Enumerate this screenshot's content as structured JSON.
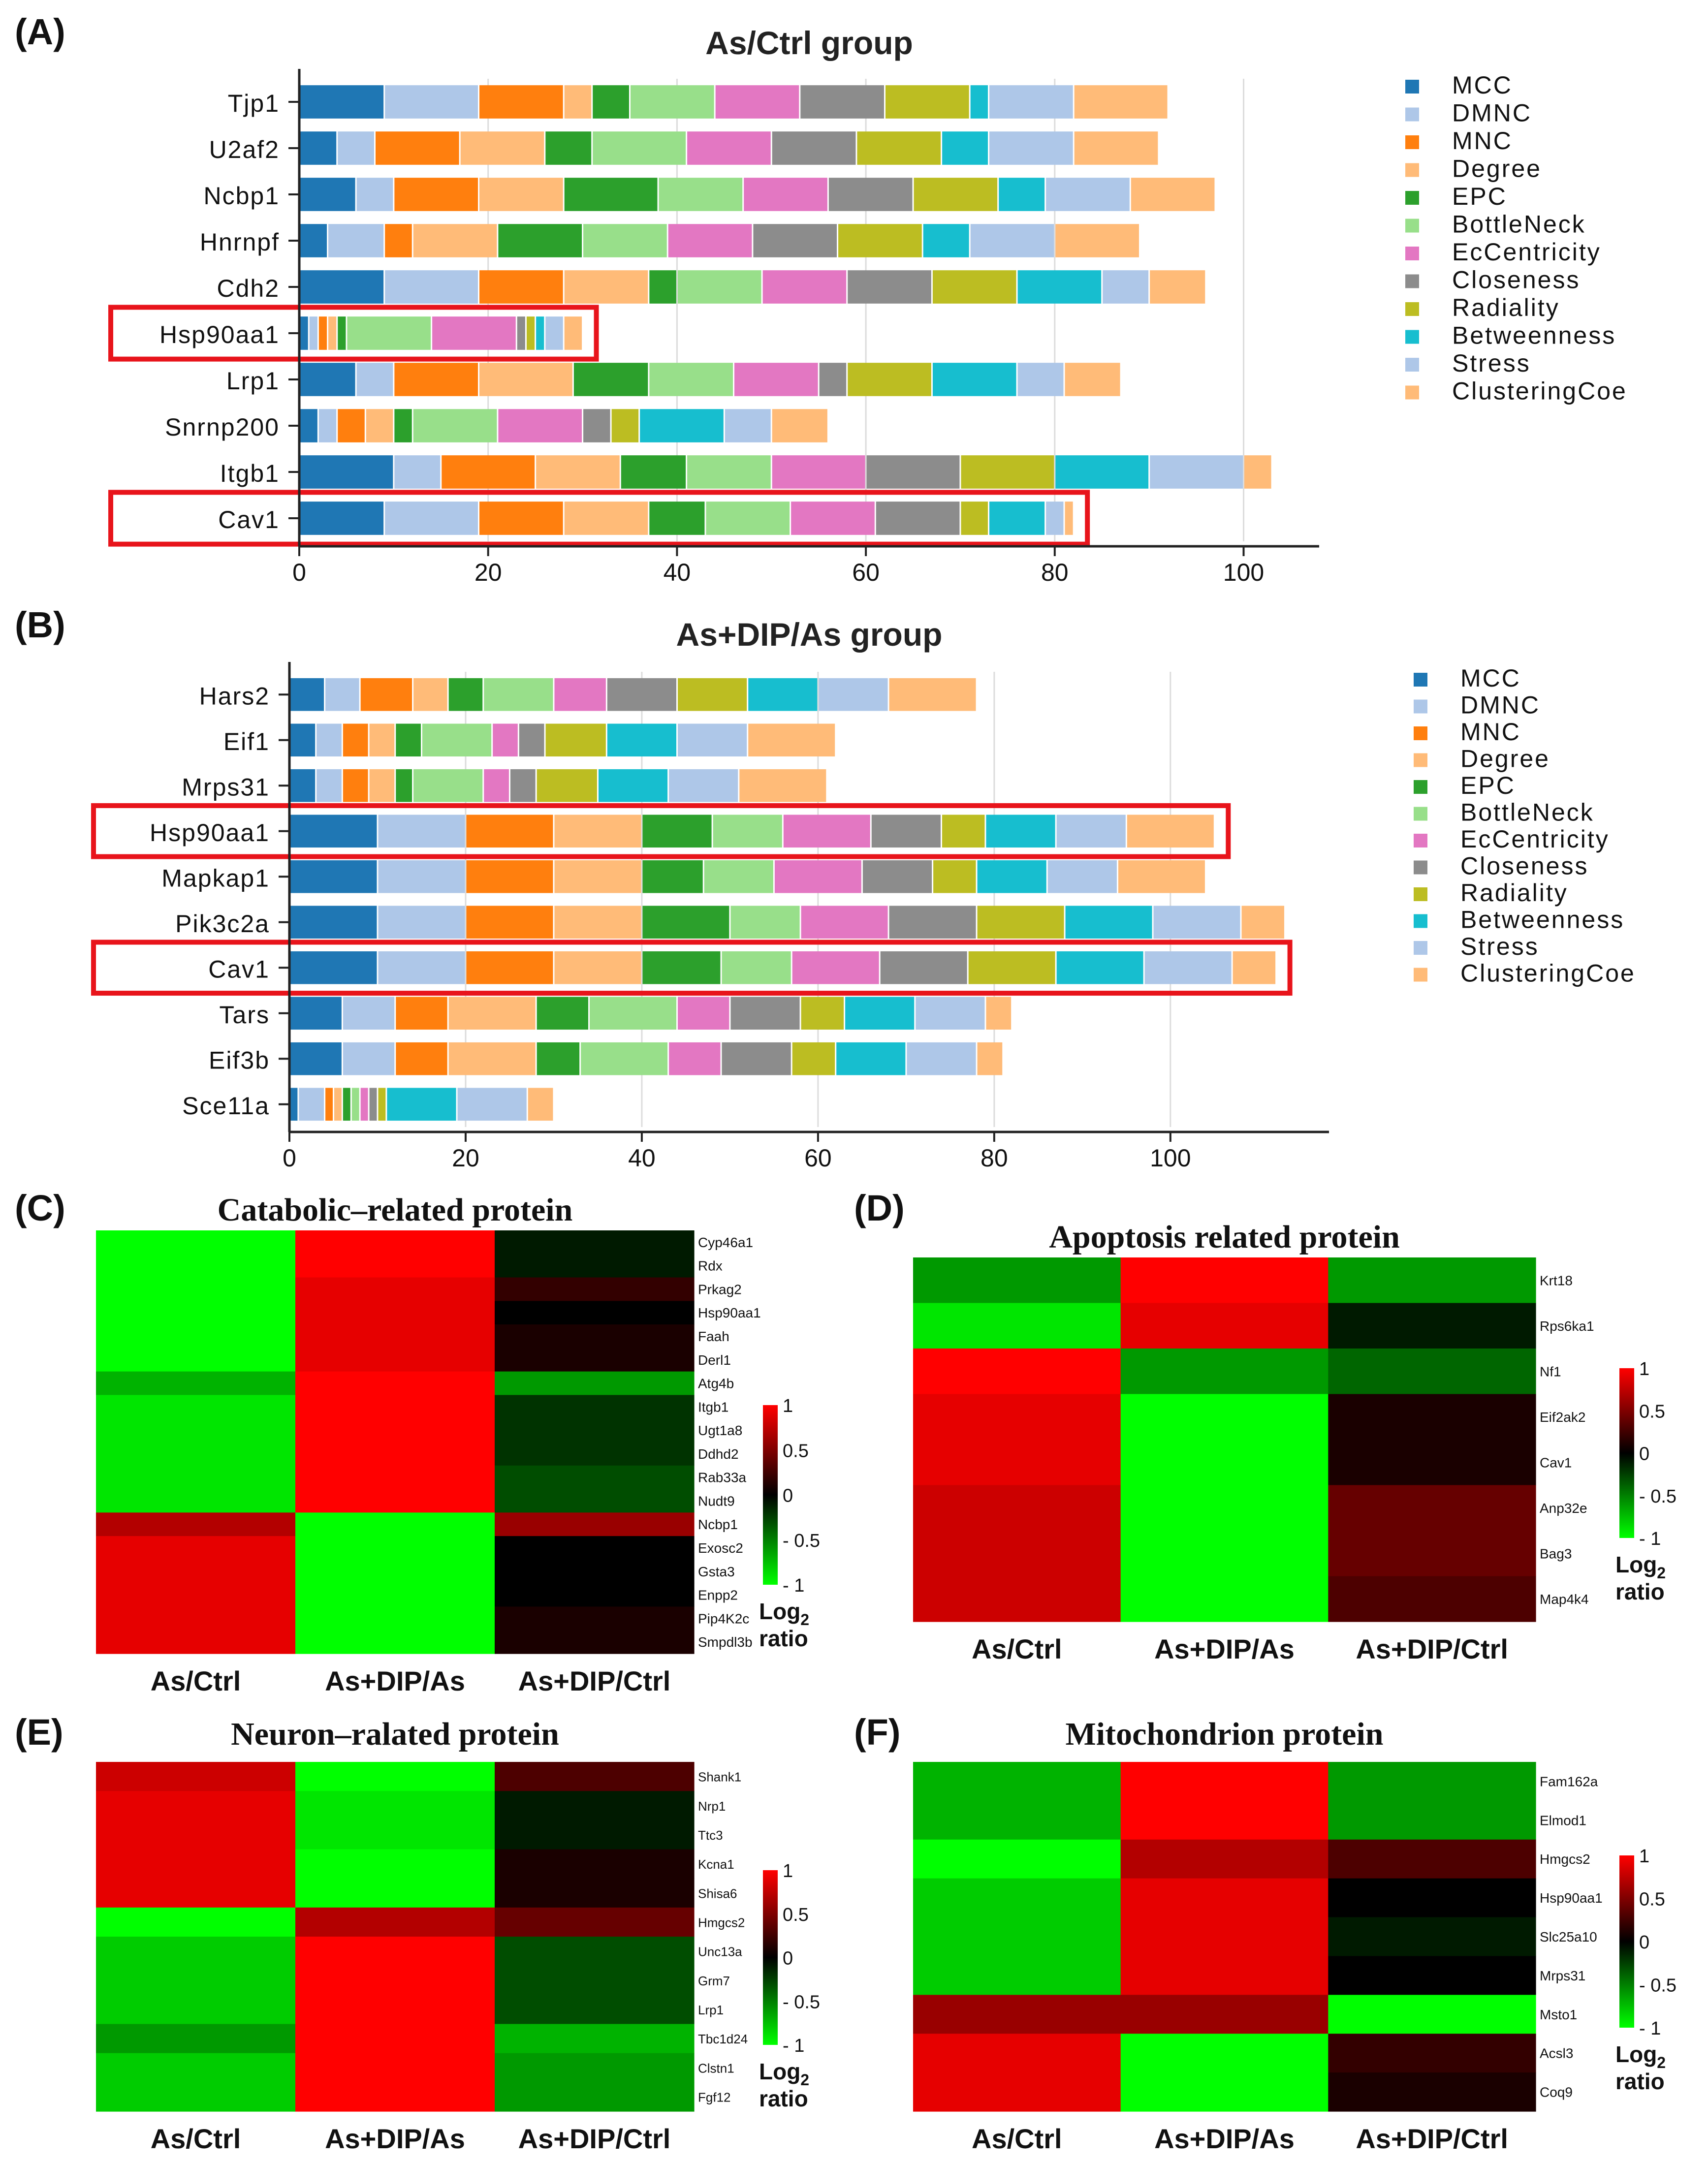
{
  "colors": {
    "MCC": "#1f77b4",
    "DMNC": "#aec7e8",
    "MNC": "#ff7f0e",
    "Degree": "#ffbb78",
    "EPC": "#2ca02c",
    "BottleNeck": "#98df8a",
    "EcCentricity": "#e377c2",
    "Closeness": "#8c8c8c",
    "Radiality": "#bcbd22",
    "Betweenness": "#17becf",
    "Stress": "#aec7e8",
    "ClusteringCoe": "#ffbb78",
    "highlight": "#e8141b",
    "heat_low": "#00ff00",
    "heat_mid": "#000000",
    "heat_high": "#ff0000"
  },
  "chart_data": [
    {
      "panel": "(A)",
      "type": "bar",
      "orientation": "horizontal",
      "stacked": true,
      "title": "As/Ctrl group",
      "xlim": [
        0,
        108
      ],
      "xticks": [
        0,
        20,
        40,
        60,
        80,
        100
      ],
      "grid": true,
      "legend": "right",
      "legend_entries": [
        "MCC",
        "DMNC",
        "MNC",
        "Degree",
        "EPC",
        "BottleNeck",
        "EcCentricity",
        "Closeness",
        "Radiality",
        "Betweenness",
        "Stress",
        "ClusteringCoe"
      ],
      "categories": [
        "Tjp1",
        "U2af2",
        "Ncbp1",
        "Hnrnpf",
        "Cdh2",
        "Hsp90aa1",
        "Lrp1",
        "Snrnp200",
        "Itgb1",
        "Cav1"
      ],
      "highlighted": [
        "Hsp90aa1",
        "Cav1"
      ],
      "series": [
        {
          "name": "MCC",
          "values": [
            9,
            4,
            6,
            3,
            9,
            1,
            6,
            2,
            10,
            9
          ]
        },
        {
          "name": "DMNC",
          "values": [
            10,
            4,
            4,
            6,
            10,
            1,
            4,
            2,
            5,
            10
          ]
        },
        {
          "name": "MNC",
          "values": [
            9,
            9,
            9,
            3,
            9,
            1,
            9,
            3,
            10,
            9
          ]
        },
        {
          "name": "Degree",
          "values": [
            3,
            9,
            9,
            9,
            9,
            1,
            10,
            3,
            9,
            9
          ]
        },
        {
          "name": "EPC",
          "values": [
            4,
            5,
            10,
            9,
            3,
            1,
            8,
            2,
            7,
            6
          ]
        },
        {
          "name": "BottleNeck",
          "values": [
            9,
            10,
            9,
            9,
            9,
            9,
            9,
            9,
            9,
            9
          ]
        },
        {
          "name": "EcCentricity",
          "values": [
            9,
            9,
            9,
            9,
            9,
            9,
            9,
            9,
            10,
            9
          ]
        },
        {
          "name": "Closeness",
          "values": [
            9,
            9,
            9,
            9,
            9,
            1,
            3,
            3,
            10,
            9
          ]
        },
        {
          "name": "Radiality",
          "values": [
            9,
            9,
            9,
            9,
            9,
            1,
            9,
            3,
            10,
            3
          ]
        },
        {
          "name": "Betweenness",
          "values": [
            2,
            5,
            5,
            5,
            9,
            1,
            9,
            9,
            10,
            6
          ]
        },
        {
          "name": "Stress",
          "values": [
            9,
            9,
            9,
            9,
            5,
            2,
            5,
            5,
            10,
            2
          ]
        },
        {
          "name": "ClusteringCoe",
          "values": [
            10,
            9,
            9,
            9,
            6,
            2,
            6,
            6,
            3,
            1
          ]
        }
      ]
    },
    {
      "panel": "(B)",
      "type": "bar",
      "orientation": "horizontal",
      "stacked": true,
      "title": "As+DIP/As group",
      "xlim": [
        0,
        118
      ],
      "xticks": [
        0,
        20,
        40,
        60,
        80,
        100
      ],
      "grid": true,
      "legend": "right",
      "legend_entries": [
        "MCC",
        "DMNC",
        "MNC",
        "Degree",
        "EPC",
        "BottleNeck",
        "EcCentricity",
        "Closeness",
        "Radiality",
        "Betweenness",
        "Stress",
        "ClusteringCoe"
      ],
      "categories": [
        "Hars2",
        "Eif1",
        "Mrps31",
        "Hsp90aa1",
        "Mapkap1",
        "Pik3c2a",
        "Cav1",
        "Tars",
        "Eif3b",
        "Sce11a"
      ],
      "highlighted": [
        "Hsp90aa1",
        "Cav1"
      ],
      "series": [
        {
          "name": "MCC",
          "values": [
            4,
            3,
            3,
            10,
            10,
            10,
            10,
            6,
            6,
            1
          ]
        },
        {
          "name": "DMNC",
          "values": [
            4,
            3,
            3,
            10,
            10,
            10,
            10,
            6,
            6,
            3
          ]
        },
        {
          "name": "MNC",
          "values": [
            6,
            3,
            3,
            10,
            10,
            10,
            10,
            6,
            6,
            1
          ]
        },
        {
          "name": "Degree",
          "values": [
            4,
            3,
            3,
            10,
            10,
            10,
            10,
            10,
            10,
            1
          ]
        },
        {
          "name": "EPC",
          "values": [
            4,
            3,
            2,
            8,
            7,
            10,
            9,
            6,
            5,
            1
          ]
        },
        {
          "name": "BottleNeck",
          "values": [
            8,
            8,
            8,
            8,
            8,
            8,
            8,
            10,
            10,
            1
          ]
        },
        {
          "name": "EcCentricity",
          "values": [
            6,
            3,
            3,
            10,
            10,
            10,
            10,
            6,
            6,
            1
          ]
        },
        {
          "name": "Closeness",
          "values": [
            8,
            3,
            3,
            8,
            8,
            10,
            10,
            8,
            8,
            1
          ]
        },
        {
          "name": "Radiality",
          "values": [
            8,
            7,
            7,
            5,
            5,
            10,
            10,
            5,
            5,
            1
          ]
        },
        {
          "name": "Betweenness",
          "values": [
            8,
            8,
            8,
            8,
            8,
            10,
            10,
            8,
            8,
            8
          ]
        },
        {
          "name": "Stress",
          "values": [
            8,
            8,
            8,
            8,
            8,
            10,
            10,
            8,
            8,
            8
          ]
        },
        {
          "name": "ClusteringCoe",
          "values": [
            10,
            10,
            10,
            10,
            10,
            5,
            5,
            3,
            3,
            3
          ]
        }
      ]
    },
    {
      "panel": "(C)",
      "type": "heatmap",
      "title": "Catabolic–related protein",
      "columns": [
        "As/Ctrl",
        "As+DIP/As",
        "As+DIP/Ctrl"
      ],
      "rows": [
        "Cyp46a1",
        "Rdx",
        "Prkag2",
        "Hsp90aa1",
        "Faah",
        "Derl1",
        "Atg4b",
        "Itgb1",
        "Ugt1a8",
        "Ddhd2",
        "Rab33a",
        "Nudt9",
        "Ncbp1",
        "Exosc2",
        "Gsta3",
        "Enpp2",
        "Pip4K2c",
        "Smpdl3b"
      ],
      "values": [
        [
          -1,
          1,
          -0.1
        ],
        [
          -1,
          1,
          -0.1
        ],
        [
          -1,
          0.9,
          0.2
        ],
        [
          -1,
          0.9,
          0
        ],
        [
          -1,
          0.9,
          0.1
        ],
        [
          -1,
          0.9,
          0.1
        ],
        [
          -0.7,
          1,
          -0.6
        ],
        [
          -0.9,
          1,
          -0.2
        ],
        [
          -0.9,
          1,
          -0.2
        ],
        [
          -0.9,
          1,
          -0.2
        ],
        [
          -0.9,
          1,
          -0.3
        ],
        [
          -0.9,
          1,
          -0.3
        ],
        [
          0.7,
          -1,
          0.6
        ],
        [
          0.9,
          -1,
          0
        ],
        [
          0.9,
          -1,
          0
        ],
        [
          0.9,
          -1,
          0
        ],
        [
          0.9,
          -1,
          0.1
        ],
        [
          0.9,
          -1,
          0.1
        ]
      ],
      "colorbar": {
        "ticks": [
          "1",
          "0.5",
          "0",
          "- 0.5",
          "- 1"
        ],
        "tick_values": [
          1,
          0.5,
          0,
          -0.5,
          -1
        ],
        "label_line1": "Log",
        "label_sub": "2",
        "label_line2": "ratio"
      }
    },
    {
      "panel": "(D)",
      "type": "heatmap",
      "title": "Apoptosis related protein",
      "columns": [
        "As/Ctrl",
        "As+DIP/As",
        "As+DIP/Ctrl"
      ],
      "rows": [
        "Krt18",
        "Rps6ka1",
        "Nf1",
        "Eif2ak2",
        "Cav1",
        "Anp32e",
        "Bag3",
        "Map4k4"
      ],
      "values": [
        [
          -0.6,
          1,
          -0.6
        ],
        [
          -0.9,
          0.9,
          -0.1
        ],
        [
          1,
          -0.6,
          -0.4
        ],
        [
          0.9,
          -1,
          0.1
        ],
        [
          0.9,
          -1,
          0.1
        ],
        [
          0.8,
          -1,
          0.4
        ],
        [
          0.8,
          -1,
          0.4
        ],
        [
          0.8,
          -1,
          0.3
        ]
      ],
      "colorbar": {
        "ticks": [
          "1",
          "0.5",
          "0",
          "- 0.5",
          "- 1"
        ],
        "tick_values": [
          1,
          0.5,
          0,
          -0.5,
          -1
        ],
        "label_line1": "Log",
        "label_sub": "2",
        "label_line2": "ratio"
      }
    },
    {
      "panel": "(E)",
      "type": "heatmap",
      "title": "Neuron–ralated protein",
      "columns": [
        "As/Ctrl",
        "As+DIP/As",
        "As+DIP/Ctrl"
      ],
      "rows": [
        "Shank1",
        "Nrp1",
        "Ttc3",
        "Kcna1",
        "Shisa6",
        "Hmgcs2",
        "Unc13a",
        "Grm7",
        "Lrp1",
        "Tbc1d24",
        "Clstn1",
        "Fgf12"
      ],
      "values": [
        [
          0.8,
          -1,
          0.3
        ],
        [
          0.9,
          -0.9,
          -0.1
        ],
        [
          0.9,
          -0.9,
          -0.1
        ],
        [
          0.9,
          -1,
          0.1
        ],
        [
          0.9,
          -1,
          0.1
        ],
        [
          -1,
          0.7,
          0.4
        ],
        [
          -0.8,
          1,
          -0.3
        ],
        [
          -0.8,
          1,
          -0.3
        ],
        [
          -0.8,
          1,
          -0.3
        ],
        [
          -0.6,
          1,
          -0.7
        ],
        [
          -0.8,
          1,
          -0.6
        ],
        [
          -0.8,
          1,
          -0.6
        ]
      ],
      "colorbar": {
        "ticks": [
          "1",
          "0.5",
          "0",
          "- 0.5",
          "- 1"
        ],
        "tick_values": [
          1,
          0.5,
          0,
          -0.5,
          -1
        ],
        "label_line1": "Log",
        "label_sub": "2",
        "label_line2": "ratio"
      }
    },
    {
      "panel": "(F)",
      "type": "heatmap",
      "title": "Mitochondrion protein",
      "columns": [
        "As/Ctrl",
        "As+DIP/As",
        "As+DIP/Ctrl"
      ],
      "rows": [
        "Fam162a",
        "Elmod1",
        "Hmgcs2",
        "Hsp90aa1",
        "Slc25a10",
        "Mrps31",
        "Msto1",
        "Acsl3",
        "Coq9"
      ],
      "values": [
        [
          -0.7,
          1,
          -0.6
        ],
        [
          -0.7,
          1,
          -0.6
        ],
        [
          -1,
          0.7,
          0.3
        ],
        [
          -0.8,
          0.9,
          0
        ],
        [
          -0.8,
          0.9,
          -0.1
        ],
        [
          -0.8,
          0.9,
          0
        ],
        [
          0.6,
          0.6,
          -1
        ],
        [
          0.9,
          -1,
          0.2
        ],
        [
          0.9,
          -1,
          0.1
        ]
      ],
      "colorbar": {
        "ticks": [
          "1",
          "0.5",
          "0",
          "- 0.5",
          "- 1"
        ],
        "tick_values": [
          1,
          0.5,
          0,
          -0.5,
          -1
        ],
        "label_line1": "Log",
        "label_sub": "2",
        "label_line2": "ratio"
      }
    }
  ]
}
